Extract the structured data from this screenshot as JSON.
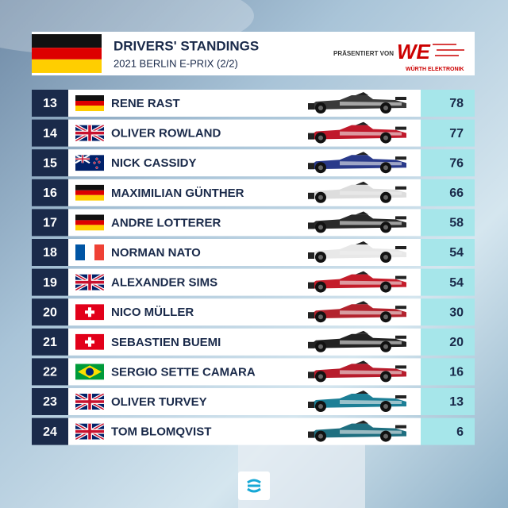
{
  "header": {
    "title": "DRIVERS' STANDINGS",
    "subtitle": "2021 BERLIN E-PRIX (2/2)",
    "sponsor_intro": "PRÄSENTIERT VON",
    "sponsor_logo": "WE",
    "sponsor_name": "WÜRTH ELEKTRONIK"
  },
  "table": {
    "rows": [
      [
        "13",
        "RENE RAST",
        "78"
      ],
      [
        "14",
        "OLIVER ROWLAND",
        "77"
      ],
      [
        "15",
        "NICK CASSIDY",
        "76"
      ],
      [
        "16",
        "MAXIMILIAN GÜNTHER",
        "66"
      ],
      [
        "17",
        "ANDRE LOTTERER",
        "58"
      ],
      [
        "18",
        "NORMAN NATO",
        "54"
      ],
      [
        "19",
        "ALEXANDER SIMS",
        "54"
      ],
      [
        "20",
        "NICO MÜLLER",
        "30"
      ],
      [
        "21",
        "SEBASTIEN BUEMI",
        "20"
      ],
      [
        "22",
        "SERGIO SETTE CAMARA",
        "16"
      ],
      [
        "23",
        "OLIVER TURVEY",
        "13"
      ],
      [
        "24",
        "TOM BLOMQVIST",
        "6"
      ]
    ]
  }
}
